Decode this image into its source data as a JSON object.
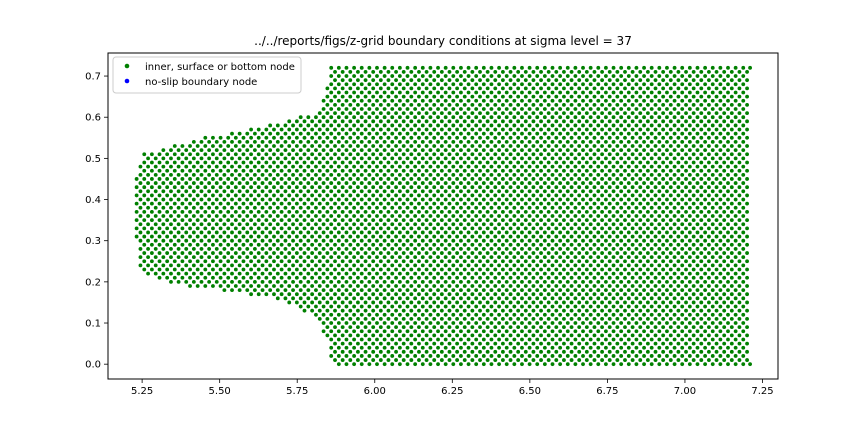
{
  "chart_data": {
    "type": "scatter",
    "title": "../../reports/figs/z-grid boundary conditions at sigma level = 37",
    "xlabel": "",
    "ylabel": "",
    "xlim": [
      5.14,
      7.3
    ],
    "ylim": [
      -0.036,
      0.756
    ],
    "grid": false,
    "legend_placement": "top-left",
    "xticks": [
      5.25,
      5.5,
      5.75,
      6.0,
      6.25,
      6.5,
      6.75,
      7.0,
      7.25
    ],
    "xtick_labels": [
      "5.25",
      "5.50",
      "5.75",
      "6.00",
      "6.25",
      "6.50",
      "6.75",
      "7.00",
      "7.25"
    ],
    "yticks": [
      0.0,
      0.1,
      0.2,
      0.3,
      0.4,
      0.5,
      0.6,
      0.7
    ],
    "ytick_labels": [
      "0.0",
      "0.1",
      "0.2",
      "0.3",
      "0.4",
      "0.5",
      "0.6",
      "0.7"
    ],
    "series": [
      {
        "name": "inner, surface or bottom node",
        "color": "#008000",
        "marker": "circle",
        "grid_spacing": {
          "dx": 0.0246,
          "dy": 0.01
        },
        "domain_outline": [
          [
            5.85,
            0.72
          ],
          [
            7.21,
            0.72
          ],
          [
            7.21,
            0.0
          ],
          [
            5.86,
            0.0
          ],
          [
            5.85,
            0.05
          ],
          [
            5.83,
            0.09
          ],
          [
            5.79,
            0.12
          ],
          [
            5.75,
            0.14
          ],
          [
            5.7,
            0.155
          ],
          [
            5.6,
            0.17
          ],
          [
            5.5,
            0.18
          ],
          [
            5.4,
            0.19
          ],
          [
            5.3,
            0.205
          ],
          [
            5.25,
            0.22
          ],
          [
            5.235,
            0.27
          ],
          [
            5.23,
            0.32
          ],
          [
            5.225,
            0.37
          ],
          [
            5.225,
            0.43
          ],
          [
            5.235,
            0.48
          ],
          [
            5.25,
            0.51
          ],
          [
            5.35,
            0.53
          ],
          [
            5.45,
            0.55
          ],
          [
            5.55,
            0.565
          ],
          [
            5.65,
            0.58
          ],
          [
            5.75,
            0.6
          ],
          [
            5.8,
            0.61
          ],
          [
            5.83,
            0.63
          ],
          [
            5.84,
            0.66
          ],
          [
            5.85,
            0.69
          ]
        ]
      },
      {
        "name": "no-slip boundary node",
        "color": "#0000ff",
        "marker": "circle",
        "points": []
      }
    ]
  }
}
